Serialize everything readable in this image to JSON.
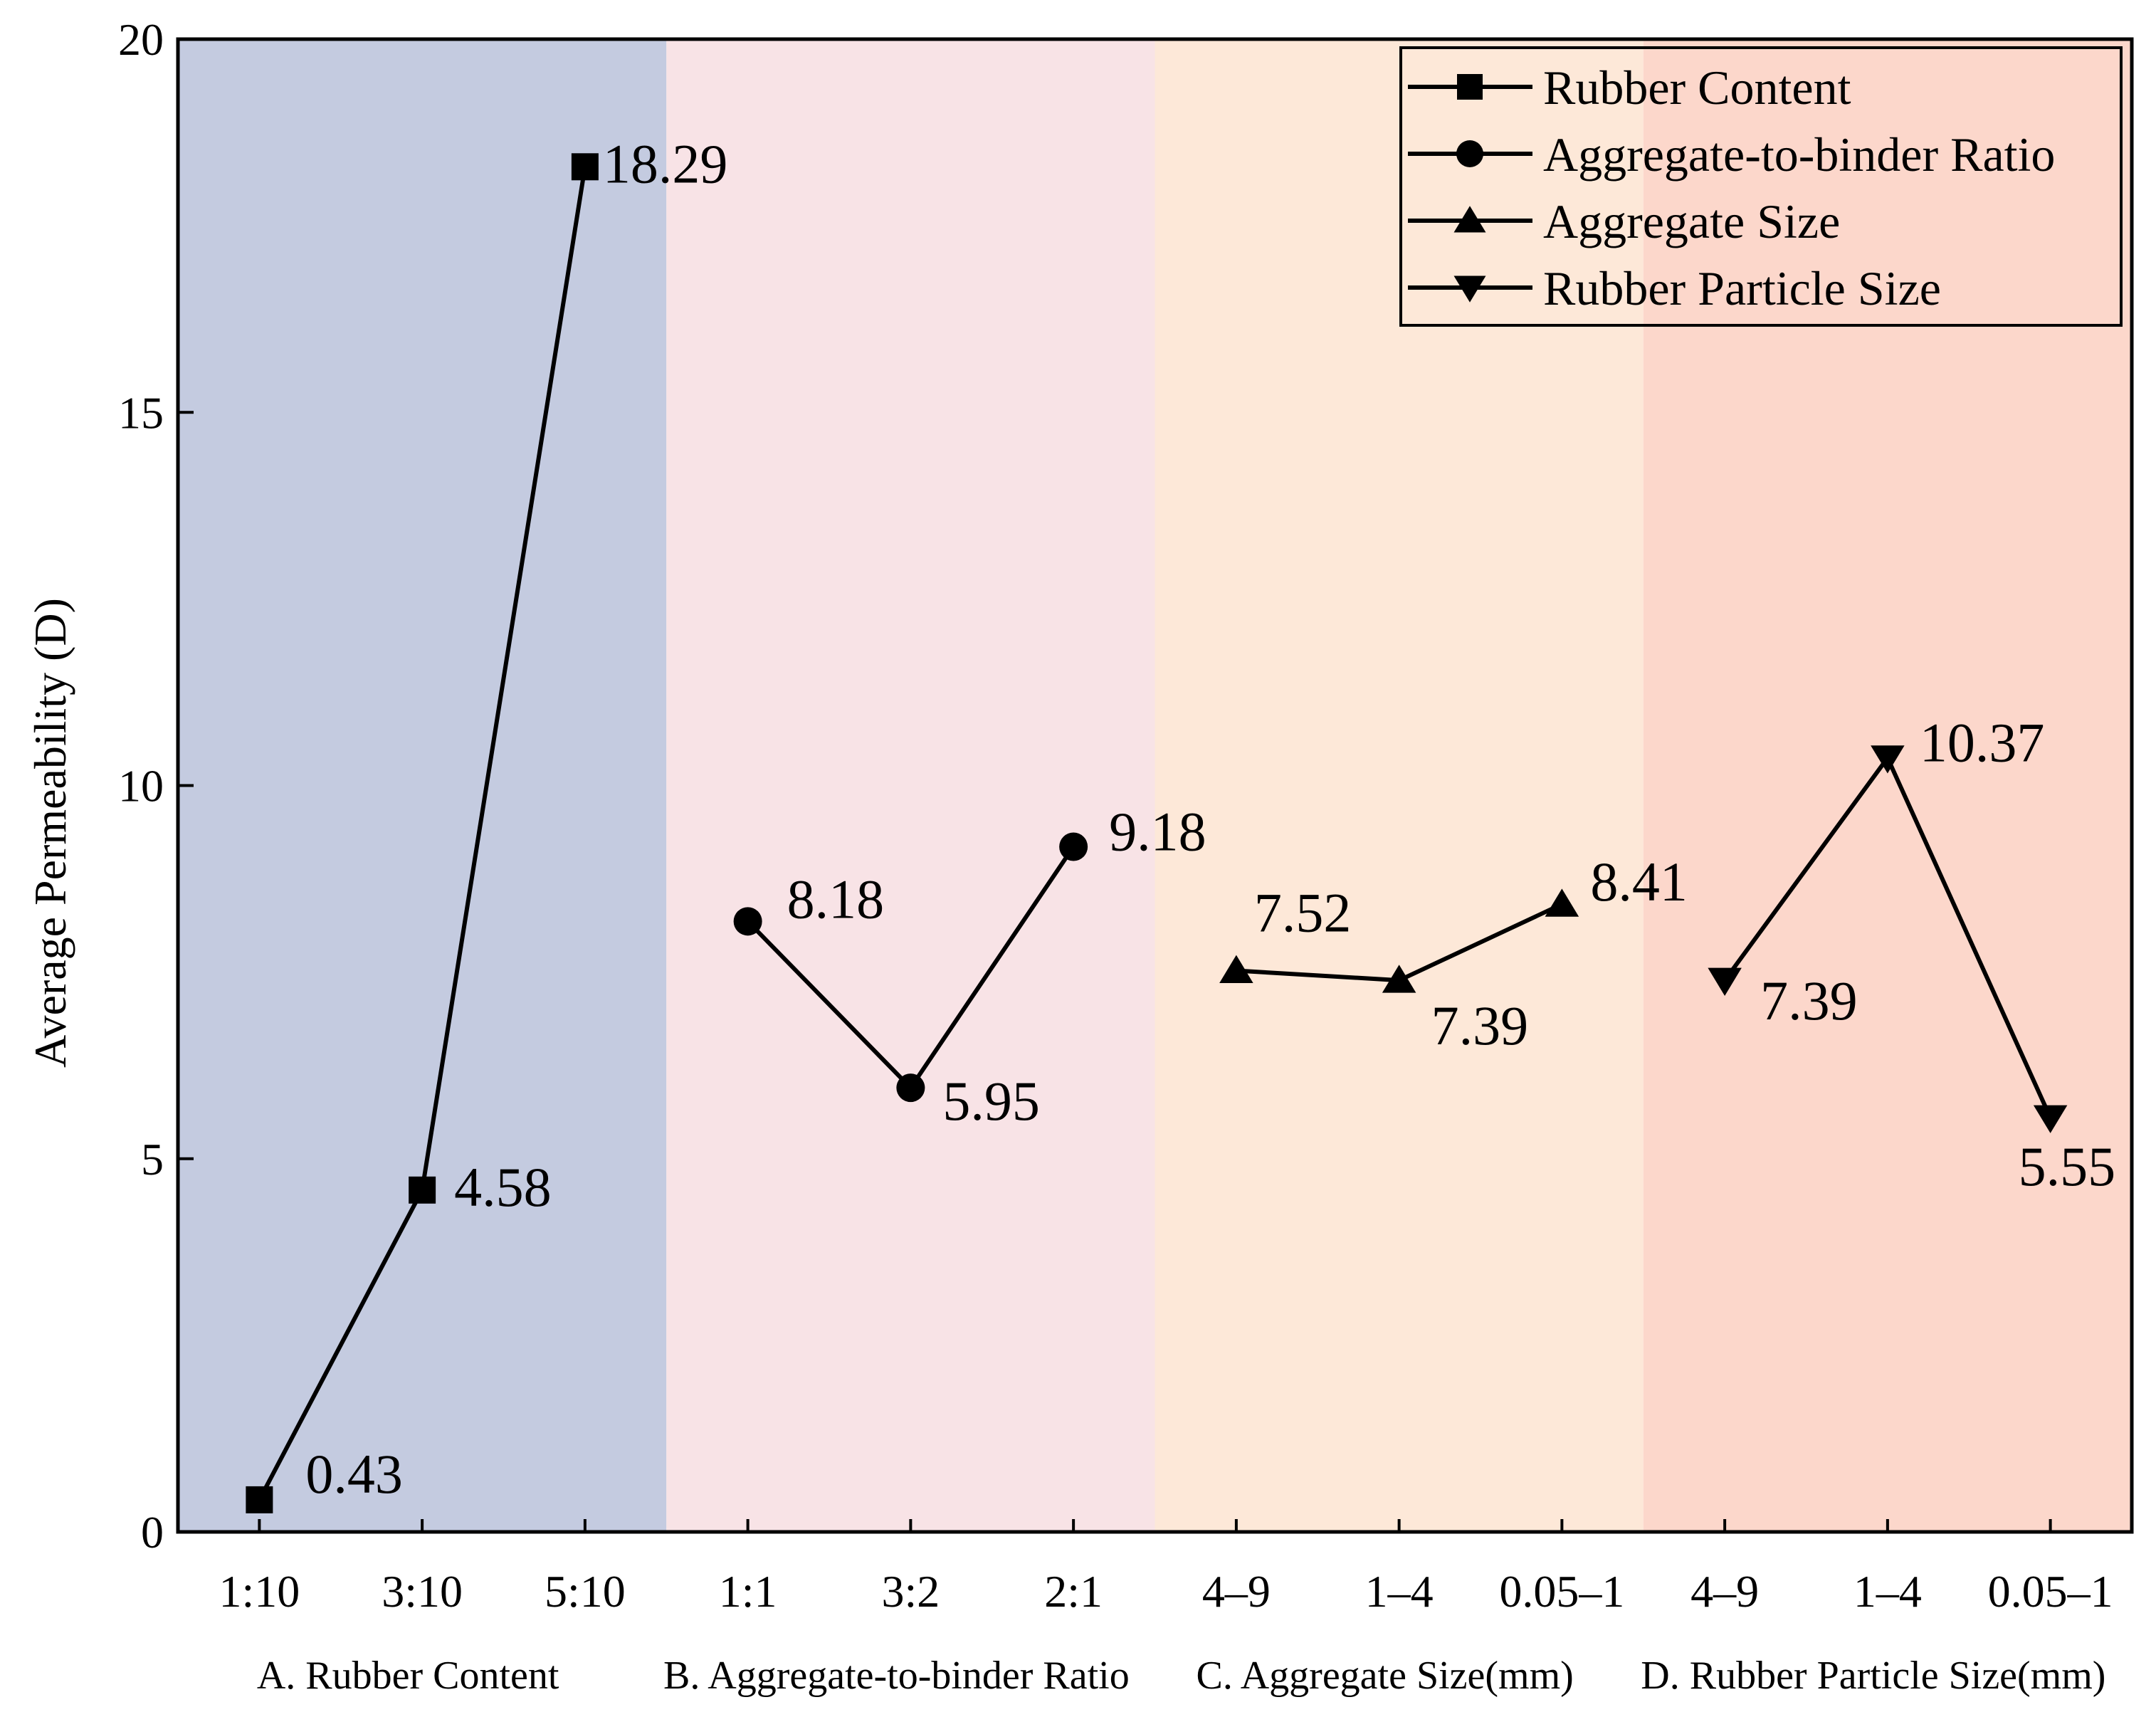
{
  "chart_data": {
    "type": "line",
    "title": "",
    "ylabel": "Average Permeability (D)",
    "ylim": [
      0,
      20
    ],
    "yticks": [
      0,
      5,
      10,
      15,
      20
    ],
    "grid": false,
    "legend_position": "top-right",
    "groups": [
      {
        "name": "A. Rubber Content",
        "color": "#c4cbe0",
        "categories": [
          "1:10",
          "3:10",
          "5:10"
        ]
      },
      {
        "name": "B. Aggregate-to-binder Ratio",
        "color": "#f8e3e6",
        "categories": [
          "1:1",
          "3:2",
          "2:1"
        ]
      },
      {
        "name": "C. Aggregate Size(mm)",
        "color": "#fde8d8",
        "categories": [
          "4–9",
          "1–4",
          "0.05–1"
        ]
      },
      {
        "name": "D. Rubber Particle Size(mm)",
        "color": "#fcd7cb",
        "categories": [
          "4–9",
          "1–4",
          "0.05–1"
        ]
      }
    ],
    "series": [
      {
        "name": "Rubber Content",
        "marker": "square",
        "group": 0,
        "values": [
          0.43,
          4.58,
          18.29
        ],
        "labels": [
          "0.43",
          "4.58",
          "18.29"
        ]
      },
      {
        "name": "Aggregate-to-binder Ratio",
        "marker": "circle",
        "group": 1,
        "values": [
          8.18,
          5.95,
          9.18
        ],
        "labels": [
          "8.18",
          "5.95",
          "9.18"
        ]
      },
      {
        "name": "Aggregate Size",
        "marker": "triangle-up",
        "group": 2,
        "values": [
          7.52,
          7.39,
          8.41
        ],
        "labels": [
          "7.52",
          "7.39",
          "8.41"
        ]
      },
      {
        "name": "Rubber Particle Size",
        "marker": "triangle-down",
        "group": 3,
        "values": [
          7.39,
          10.37,
          5.55
        ],
        "labels": [
          "7.39",
          "10.37",
          "5.55"
        ]
      }
    ]
  }
}
